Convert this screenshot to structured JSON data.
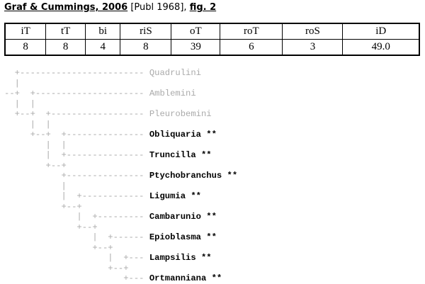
{
  "header": {
    "citation": "Graf & Cummings, 2006",
    "publication": "[Publ 1968],",
    "figure": "fig. 2"
  },
  "table": {
    "headers": [
      "iT",
      "tT",
      "bi",
      "riS",
      "oT",
      "roT",
      "roS",
      "iD"
    ],
    "rows": [
      [
        "8",
        "8",
        "4",
        "8",
        "39",
        "6",
        "3",
        "49.0"
      ]
    ]
  },
  "tree": {
    "line_color": "#aaaaaa",
    "rows": [
      {
        "branch": "  +------------------------",
        "label": "Quadrulini",
        "color": "#aaaaaa",
        "bold": false
      },
      {
        "branch": "  |"
      },
      {
        "branch": "--+  +---------------------",
        "label": "Amblemini",
        "color": "#aaaaaa",
        "bold": false
      },
      {
        "branch": "  |  |"
      },
      {
        "branch": "  +--+  +------------------",
        "label": "Pleurobemini",
        "color": "#aaaaaa",
        "bold": false
      },
      {
        "branch": "     |  |"
      },
      {
        "branch": "     +--+  +---------------",
        "label": "Obliquaria **",
        "color": "#000000",
        "bold": true
      },
      {
        "branch": "        |  |"
      },
      {
        "branch": "        |  +---------------",
        "label": "Truncilla **",
        "color": "#000000",
        "bold": true
      },
      {
        "branch": "        +--+"
      },
      {
        "branch": "           +---------------",
        "label": "Ptychobranchus **",
        "color": "#000000",
        "bold": true
      },
      {
        "branch": "           |"
      },
      {
        "branch": "           |  +------------",
        "label": "Ligumia **",
        "color": "#000000",
        "bold": true
      },
      {
        "branch": "           +--+"
      },
      {
        "branch": "              |  +---------",
        "label": "Cambarunio **",
        "color": "#000000",
        "bold": true
      },
      {
        "branch": "              +--+"
      },
      {
        "branch": "                 |  +------",
        "label": "Epioblasma **",
        "color": "#000000",
        "bold": true
      },
      {
        "branch": "                 +--+"
      },
      {
        "branch": "                    |  +---",
        "label": "Lampsilis **",
        "color": "#000000",
        "bold": true
      },
      {
        "branch": "                    +--+"
      },
      {
        "branch": "                       +---",
        "label": "Ortmanniana **",
        "color": "#000000",
        "bold": true
      }
    ]
  }
}
